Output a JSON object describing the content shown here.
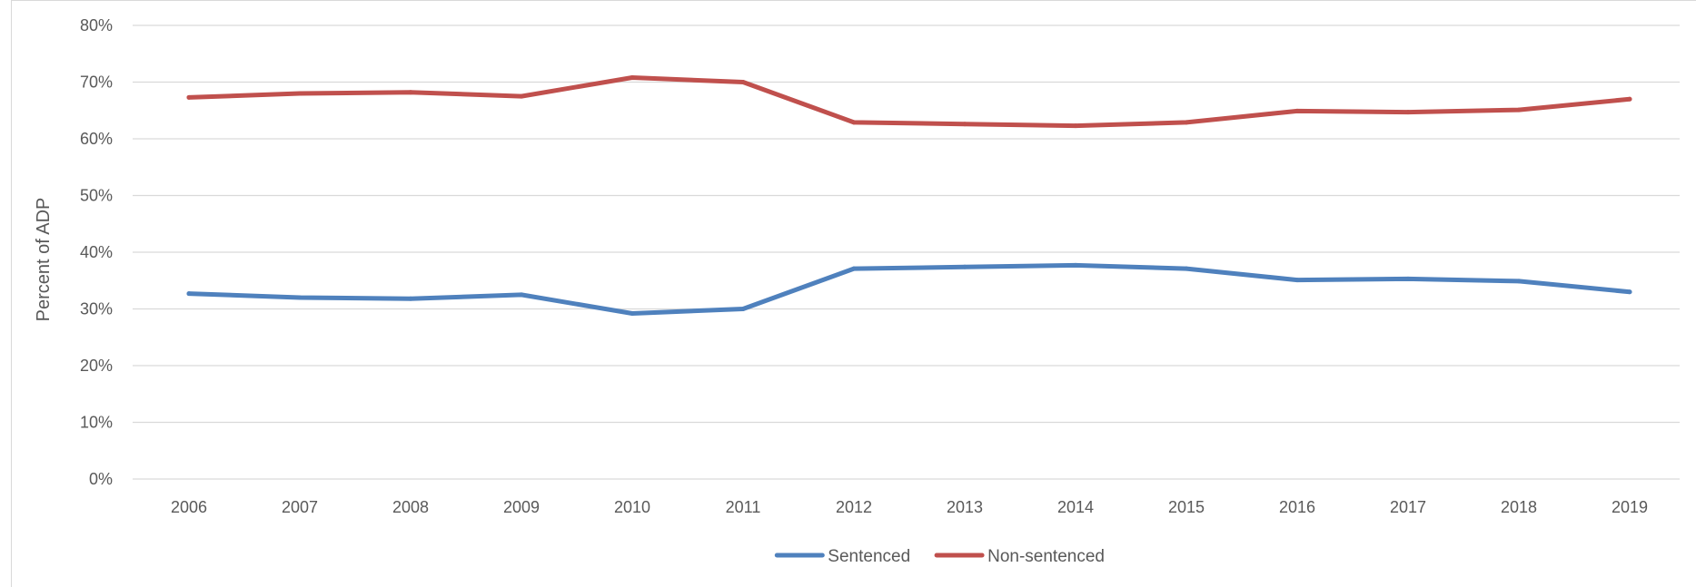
{
  "chart_data": {
    "type": "line",
    "title": "",
    "xlabel": "",
    "ylabel": "Percent of ADP",
    "x": [
      "2006",
      "2007",
      "2008",
      "2009",
      "2010",
      "2011",
      "2012",
      "2013",
      "2014",
      "2015",
      "2016",
      "2017",
      "2018",
      "2019"
    ],
    "y_ticks": [
      "0%",
      "10%",
      "20%",
      "30%",
      "40%",
      "50%",
      "60%",
      "70%",
      "80%"
    ],
    "ylim": [
      0,
      80
    ],
    "grid": true,
    "legend_position": "bottom",
    "series": [
      {
        "name": "Sentenced",
        "color": "#4f81bd",
        "values": [
          32.7,
          32.0,
          31.8,
          32.5,
          29.2,
          30.0,
          37.1,
          37.4,
          37.7,
          37.1,
          35.1,
          35.3,
          34.9,
          33.0
        ]
      },
      {
        "name": "Non-sentenced",
        "color": "#c0504d",
        "values": [
          67.3,
          68.0,
          68.2,
          67.5,
          70.8,
          70.0,
          62.9,
          62.6,
          62.3,
          62.9,
          64.9,
          64.7,
          65.1,
          67.0
        ]
      }
    ]
  }
}
